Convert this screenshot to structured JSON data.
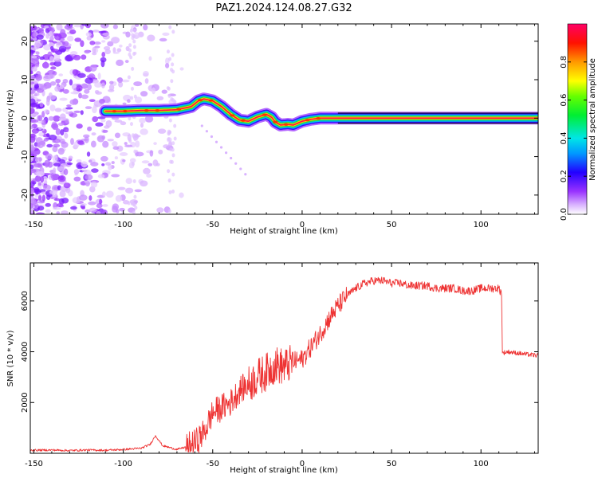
{
  "title": "PAZ1.2024.124.08.27.G32",
  "chart_data": [
    {
      "type": "heatmap",
      "xlabel": "Height of straight line (km)",
      "ylabel": "Frequency (Hz)",
      "xlim": [
        -152,
        132
      ],
      "ylim": [
        -25,
        24.5
      ],
      "xticks": [
        -150,
        -100,
        -50,
        0,
        50,
        100
      ],
      "yticks": [
        -20,
        -10,
        0,
        10,
        20
      ],
      "colorbar": {
        "label": "Normalized spectral amplitude",
        "range": [
          0,
          1
        ],
        "ticks": [
          0.0,
          0.2,
          0.4,
          0.6,
          0.8
        ],
        "colormap": "rainbow (white-violet-blue-cyan-green-yellow-orange-red-magenta)"
      },
      "ridge": {
        "x": [
          -110,
          -100,
          -90,
          -80,
          -70,
          -62,
          -58,
          -55,
          -50,
          -45,
          -40,
          -35,
          -30,
          -25,
          -20,
          -17,
          -15,
          -12,
          -8,
          -5,
          0,
          5,
          10,
          15,
          20,
          40,
          60,
          80,
          100,
          120,
          132
        ],
        "y": [
          1.8,
          1.8,
          2.0,
          2.0,
          2.2,
          3.0,
          4.5,
          5.0,
          4.5,
          3.0,
          1.0,
          -0.5,
          -0.8,
          0.3,
          1.0,
          0.2,
          -1.0,
          -1.8,
          -1.6,
          -1.8,
          -0.8,
          -0.3,
          0.0,
          0.0,
          0.0,
          0.0,
          0.0,
          0.0,
          0.0,
          0.0,
          0.0
        ]
      }
    },
    {
      "type": "line",
      "xlabel": "Height of straight line (km)",
      "ylabel": "SNR (10 * v/v)",
      "xlim": [
        -152,
        132
      ],
      "ylim": [
        0,
        7500
      ],
      "xticks": [
        -150,
        -100,
        -50,
        0,
        50,
        100
      ],
      "yticks": [
        2000,
        4000,
        6000
      ],
      "series": [
        {
          "color": "#ee3333",
          "x": [
            -152,
            -140,
            -130,
            -120,
            -110,
            -100,
            -90,
            -85,
            -82,
            -78,
            -70,
            -65,
            -60,
            -55,
            -50,
            -45,
            -40,
            -35,
            -30,
            -25,
            -20,
            -15,
            -10,
            -5,
            0,
            5,
            10,
            15,
            20,
            25,
            30,
            35,
            40,
            45,
            50,
            55,
            60,
            65,
            70,
            75,
            80,
            85,
            90,
            95,
            100,
            105,
            110,
            111.5,
            112,
            115,
            120,
            125,
            132
          ],
          "y": [
            120,
            130,
            110,
            130,
            120,
            150,
            200,
            350,
            700,
            300,
            150,
            250,
            400,
            800,
            1600,
            1800,
            2000,
            2500,
            2700,
            3000,
            3200,
            3500,
            3400,
            3600,
            3700,
            4200,
            4700,
            5300,
            5800,
            6200,
            6500,
            6700,
            6800,
            6800,
            6700,
            6700,
            6600,
            6600,
            6600,
            6500,
            6500,
            6500,
            6400,
            6400,
            6500,
            6500,
            6500,
            6300,
            3950,
            4000,
            3950,
            3900,
            3850
          ]
        }
      ]
    }
  ]
}
